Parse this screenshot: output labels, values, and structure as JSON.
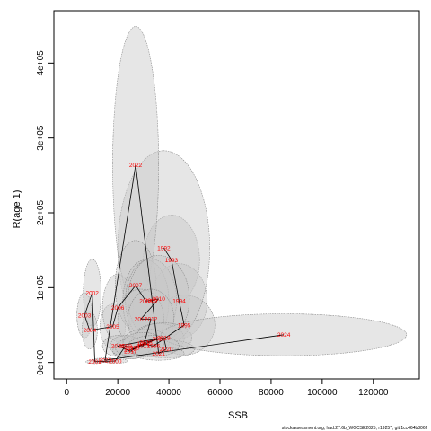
{
  "chart_data": {
    "type": "scatter",
    "title": "",
    "xlabel": "SSB",
    "ylabel": "R(age 1)",
    "xlim": [
      -5000,
      138000
    ],
    "ylim": [
      -22000,
      470000
    ],
    "x_ticks": [
      0,
      20000,
      40000,
      60000,
      80000,
      100000,
      120000
    ],
    "x_tick_labels": [
      "0",
      "20000",
      "40000",
      "60000",
      "80000",
      "100000",
      "120000"
    ],
    "y_ticks": [
      0,
      100000,
      200000,
      300000,
      400000
    ],
    "y_tick_labels": [
      "0e+00",
      "1e+05",
      "2e+05",
      "3e+05",
      "4e+05"
    ],
    "grid": false,
    "ellipse_color": "#c8c8c8",
    "label_color": "#ff0000",
    "line_color": "#000000",
    "points": [
      {
        "year": "1993",
        "x": 41000,
        "y": 137000,
        "ex": 11000,
        "ey": 60000
      },
      {
        "year": "1994",
        "x": 44000,
        "y": 82000,
        "ex": 11000,
        "ey": 50000
      },
      {
        "year": "1995",
        "x": 46000,
        "y": 50000,
        "ex": 12000,
        "ey": 40000
      },
      {
        "year": "1992",
        "x": 38000,
        "y": 153000,
        "ex": 18000,
        "ey": 130000
      },
      {
        "year": "2022",
        "x": 27000,
        "y": 264000,
        "ex": 9000,
        "ey": 185000
      },
      {
        "year": "2002",
        "x": 10000,
        "y": 93000,
        "ex": 3500,
        "ey": 45000
      },
      {
        "year": "2003",
        "x": 7000,
        "y": 63000,
        "ex": 3000,
        "ey": 30000
      },
      {
        "year": "2004",
        "x": 9000,
        "y": 43000,
        "ex": 3000,
        "ey": 25000
      },
      {
        "year": "2005",
        "x": 18000,
        "y": 48000,
        "ex": 5000,
        "ey": 30000
      },
      {
        "year": "2006",
        "x": 20000,
        "y": 73000,
        "ex": 6000,
        "ey": 45000
      },
      {
        "year": "2007",
        "x": 27000,
        "y": 103000,
        "ex": 8000,
        "ey": 60000
      },
      {
        "year": "2008",
        "x": 31000,
        "y": 82000,
        "ex": 9000,
        "ey": 55000
      },
      {
        "year": "2009",
        "x": 33000,
        "y": 83000,
        "ex": 10000,
        "ey": 55000
      },
      {
        "year": "2010",
        "x": 36000,
        "y": 85000,
        "ex": 12000,
        "ey": 58000
      },
      {
        "year": "2011",
        "x": 29000,
        "y": 58000,
        "ex": 9000,
        "ey": 40000
      },
      {
        "year": "2012",
        "x": 33000,
        "y": 58000,
        "ex": 9000,
        "ey": 40000
      },
      {
        "year": "2013",
        "x": 30000,
        "y": 22000,
        "ex": 8000,
        "ey": 15000
      },
      {
        "year": "2014",
        "x": 25000,
        "y": 17000,
        "ex": 7000,
        "ey": 12000
      },
      {
        "year": "2015",
        "x": 36000,
        "y": 32000,
        "ex": 10000,
        "ey": 20000
      },
      {
        "year": "2016",
        "x": 20000,
        "y": 22000,
        "ex": 6000,
        "ey": 14000
      },
      {
        "year": "2017",
        "x": 25000,
        "y": 15000,
        "ex": 7000,
        "ey": 10000
      },
      {
        "year": "2018",
        "x": 31000,
        "y": 27000,
        "ex": 9000,
        "ey": 18000
      },
      {
        "year": "2019",
        "x": 38000,
        "y": 33000,
        "ex": 11000,
        "ey": 20000
      },
      {
        "year": "2020",
        "x": 39000,
        "y": 18000,
        "ex": 11000,
        "ey": 12000
      },
      {
        "year": "2021",
        "x": 36000,
        "y": 12000,
        "ex": 10000,
        "ey": 9000
      },
      {
        "year": "2023",
        "x": 15000,
        "y": 3000,
        "ex": 5000,
        "ey": 3000
      },
      {
        "year": "2024",
        "x": 85000,
        "y": 37000,
        "ex": 48000,
        "ey": 28000
      },
      {
        "year": "2000",
        "x": 19000,
        "y": 2000,
        "ex": 5000,
        "ey": 3000
      },
      {
        "year": "2001",
        "x": 11000,
        "y": 1000,
        "ex": 3500,
        "ey": 2500
      },
      {
        "year": "1999",
        "x": 23000,
        "y": 22000,
        "ex": 6000,
        "ey": 14000
      },
      {
        "year": "1998",
        "x": 26000,
        "y": 20000,
        "ex": 7000,
        "ey": 12000
      },
      {
        "year": "1997",
        "x": 30000,
        "y": 25000,
        "ex": 8000,
        "ey": 15000
      },
      {
        "year": "1996",
        "x": 34000,
        "y": 22000,
        "ex": 10000,
        "ey": 14000
      }
    ],
    "path_order": [
      "1992",
      "1993",
      "1994",
      "1995",
      "1996",
      "1997",
      "1998",
      "1999",
      "2000",
      "2001",
      "2002",
      "2003",
      "2004",
      "2005",
      "2006",
      "2007",
      "2008",
      "2009",
      "2010",
      "2011",
      "2012",
      "2013",
      "2014",
      "2015",
      "2016",
      "2017",
      "2018",
      "2019",
      "2020",
      "2021",
      "2022",
      "2023",
      "2024"
    ]
  },
  "footer": {
    "text": "stockassessment.org, had.27.6b_WGCSE2025, r19257, git:1cc464b806f"
  }
}
